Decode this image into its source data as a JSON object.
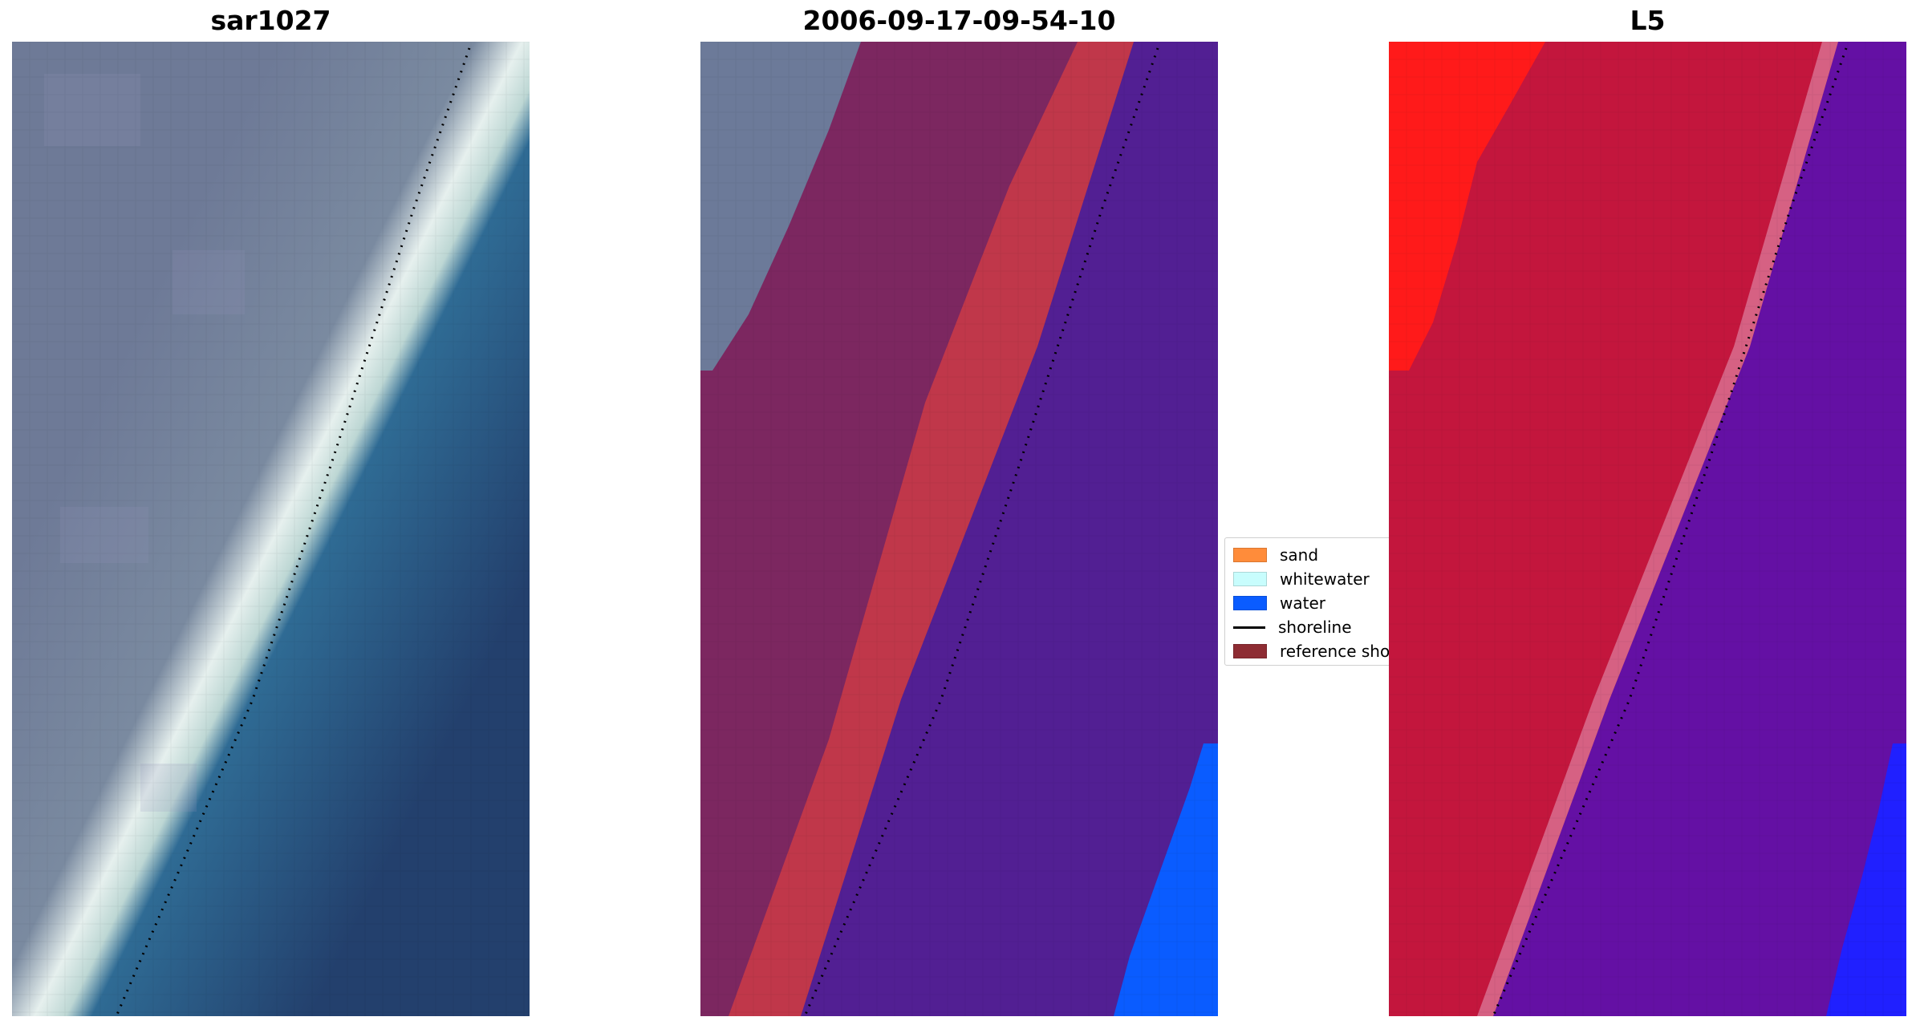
{
  "panels": [
    {
      "title": "sar1027"
    },
    {
      "title": "2006-09-17-09-54-10"
    },
    {
      "title": "L5"
    }
  ],
  "legend": {
    "items": [
      {
        "label": "sand",
        "color": "#ff8c3a",
        "kind": "patch"
      },
      {
        "label": "whitewater",
        "color": "#c8fdfd",
        "kind": "patch"
      },
      {
        "label": "water",
        "color": "#0a5cff",
        "kind": "patch"
      },
      {
        "label": "shoreline",
        "color": "#000000",
        "kind": "line"
      },
      {
        "label": "reference shoreline",
        "color": "#8e2c33",
        "kind": "patch"
      }
    ]
  },
  "colors": {
    "land_rgb": "#6c7a99",
    "beach_rgb": "#e8f2ee",
    "water_rgb": "#2a5e8e",
    "land_class": "#7c2760",
    "water_class": "#521f93",
    "sand_class": "#c83a48",
    "water_blue": "#0a5cff",
    "land_ir": "#c3163d",
    "water_ir": "#6410a4",
    "bright_red": "#ff1a1a",
    "ir_blue": "#2020ff"
  }
}
